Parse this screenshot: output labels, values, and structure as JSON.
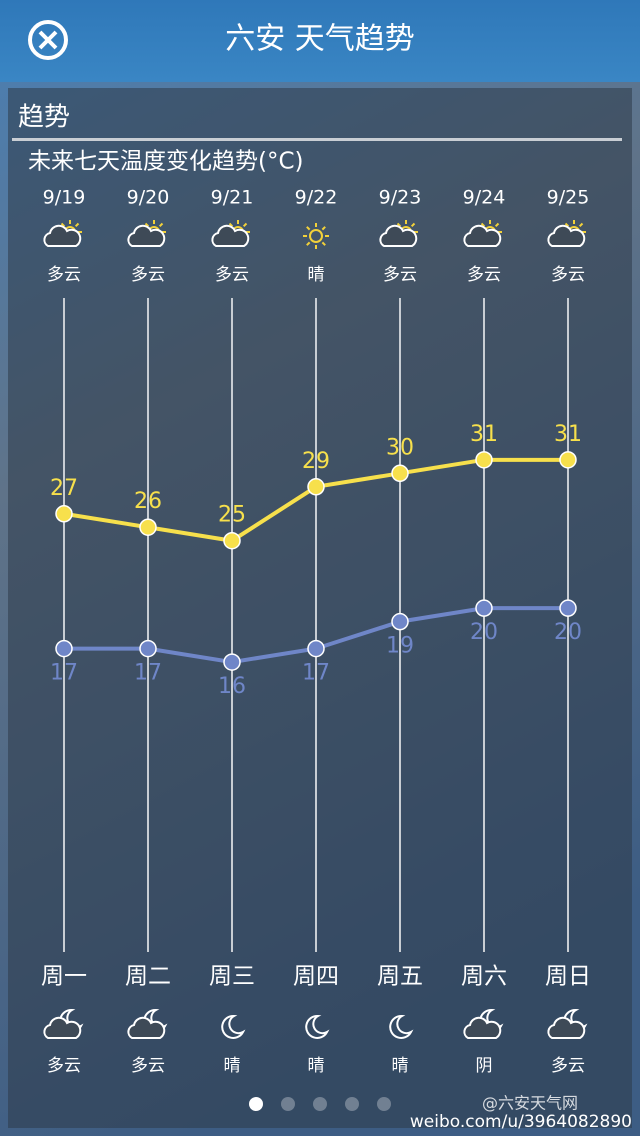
{
  "header": {
    "title": "六安 天气趋势"
  },
  "section_title": "趋势",
  "chart_data": {
    "type": "line",
    "title": "未来七天温度变化趋势(°C)",
    "categories": [
      "9/19",
      "9/20",
      "9/21",
      "9/22",
      "9/23",
      "9/24",
      "9/25"
    ],
    "day_conditions": [
      "多云",
      "多云",
      "多云",
      "晴",
      "多云",
      "多云",
      "多云"
    ],
    "weekdays": [
      "周一",
      "周二",
      "周三",
      "周四",
      "周五",
      "周六",
      "周日"
    ],
    "night_conditions": [
      "多云",
      "多云",
      "晴",
      "晴",
      "晴",
      "阴",
      "多云"
    ],
    "series": [
      {
        "color": "#f7e04c",
        "values": [
          27,
          26,
          25,
          29,
          30,
          31,
          31
        ]
      },
      {
        "color": "#6f86c8",
        "values": [
          17,
          17,
          16,
          17,
          19,
          20,
          20
        ]
      }
    ],
    "ylim": [
      -5.5,
      43
    ]
  },
  "watermark": {
    "url": "weibo.com/u/3964082890",
    "account": "@六安天气网"
  }
}
